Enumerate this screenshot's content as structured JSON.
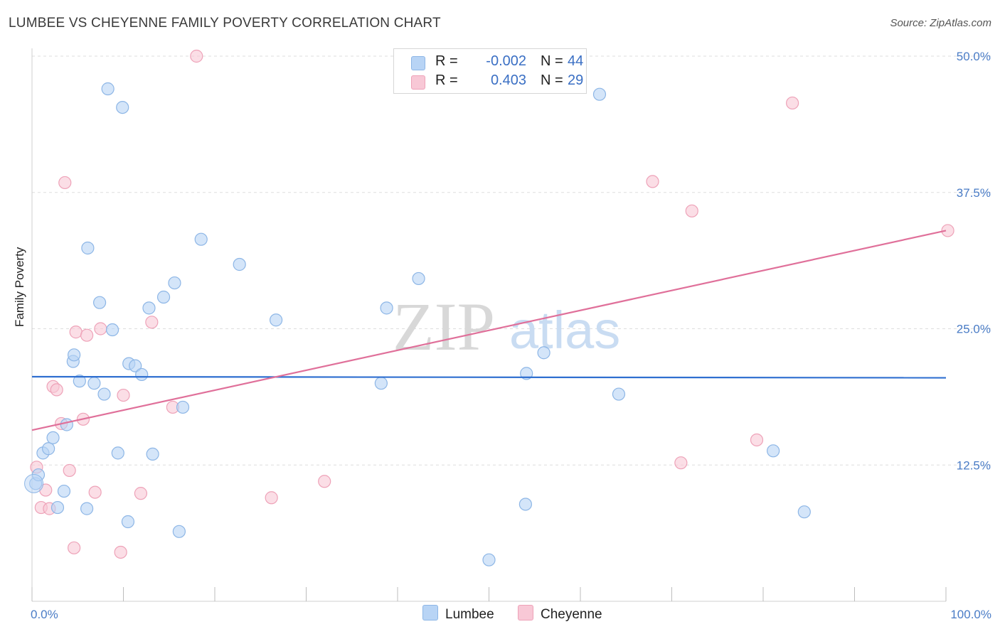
{
  "title": "LUMBEE VS CHEYENNE FAMILY POVERTY CORRELATION CHART",
  "source": "Source: ZipAtlas.com",
  "watermark": {
    "zip": "ZIP",
    "atlas": "atlas"
  },
  "legend": {
    "rows": [
      {
        "r_label": "R =",
        "r_value": "-0.002",
        "n_label": "N =",
        "n_value": "44"
      },
      {
        "r_label": "R =",
        "r_value": "0.403",
        "n_label": "N =",
        "n_value": "29"
      }
    ]
  },
  "colors": {
    "lumbee_fill": "#b8d4f5",
    "lumbee_stroke": "#8db6e6",
    "lumbee_line": "#2f6fd0",
    "cheyenne_fill": "#f8c8d6",
    "cheyenne_stroke": "#eea2b8",
    "cheyenne_line": "#e0709a",
    "grid": "#dddddd",
    "axis_text": "#4a7cc6"
  },
  "chart_data": {
    "type": "scatter",
    "title": "LUMBEE VS CHEYENNE FAMILY POVERTY CORRELATION CHART",
    "xlabel": "",
    "ylabel": "Family Poverty",
    "xlim": [
      0,
      100
    ],
    "ylim": [
      0,
      50
    ],
    "x_tick_labels": [
      "0.0%",
      "100.0%"
    ],
    "y_ticks": [
      12.5,
      25.0,
      37.5,
      50.0
    ],
    "y_tick_labels": [
      "12.5%",
      "25.0%",
      "37.5%",
      "50.0%"
    ],
    "grid": true,
    "series": [
      {
        "name": "Lumbee",
        "r": -0.002,
        "n": 44,
        "trend": {
          "x": [
            0,
            100
          ],
          "y": [
            20.6,
            20.5
          ]
        },
        "points": [
          [
            0.4,
            10.8
          ],
          [
            0.7,
            11.6
          ],
          [
            1.2,
            13.6
          ],
          [
            1.8,
            14.0
          ],
          [
            2.3,
            15.0
          ],
          [
            2.8,
            8.6
          ],
          [
            3.5,
            10.1
          ],
          [
            3.8,
            16.2
          ],
          [
            4.5,
            22.0
          ],
          [
            4.6,
            22.6
          ],
          [
            5.2,
            20.2
          ],
          [
            6.0,
            8.5
          ],
          [
            6.1,
            32.4
          ],
          [
            6.8,
            20.0
          ],
          [
            7.4,
            27.4
          ],
          [
            7.9,
            19.0
          ],
          [
            8.3,
            47.0
          ],
          [
            8.8,
            24.9
          ],
          [
            9.4,
            13.6
          ],
          [
            9.9,
            45.3
          ],
          [
            10.5,
            7.3
          ],
          [
            10.6,
            21.8
          ],
          [
            11.3,
            21.6
          ],
          [
            12.0,
            20.8
          ],
          [
            12.8,
            26.9
          ],
          [
            13.2,
            13.5
          ],
          [
            14.4,
            27.9
          ],
          [
            15.6,
            29.2
          ],
          [
            16.1,
            6.4
          ],
          [
            16.5,
            17.8
          ],
          [
            18.5,
            33.2
          ],
          [
            22.7,
            30.9
          ],
          [
            26.7,
            25.8
          ],
          [
            38.2,
            20.0
          ],
          [
            38.8,
            26.9
          ],
          [
            42.3,
            29.6
          ],
          [
            50.0,
            3.8
          ],
          [
            54.0,
            8.9
          ],
          [
            54.1,
            20.9
          ],
          [
            56.0,
            22.8
          ],
          [
            62.1,
            46.5
          ],
          [
            64.2,
            19.0
          ],
          [
            81.1,
            13.8
          ],
          [
            84.5,
            8.2
          ]
        ]
      },
      {
        "name": "Cheyenne",
        "r": 0.403,
        "n": 29,
        "trend": {
          "x": [
            0,
            100
          ],
          "y": [
            15.7,
            34.0
          ]
        },
        "points": [
          [
            0.5,
            12.3
          ],
          [
            1.0,
            8.6
          ],
          [
            1.5,
            10.2
          ],
          [
            1.9,
            8.5
          ],
          [
            2.3,
            19.7
          ],
          [
            2.7,
            19.4
          ],
          [
            3.2,
            16.3
          ],
          [
            3.6,
            38.4
          ],
          [
            4.1,
            12.0
          ],
          [
            4.6,
            4.9
          ],
          [
            4.8,
            24.7
          ],
          [
            5.6,
            16.7
          ],
          [
            6.0,
            24.4
          ],
          [
            6.9,
            10.0
          ],
          [
            7.5,
            25.0
          ],
          [
            9.7,
            4.5
          ],
          [
            10.0,
            18.9
          ],
          [
            11.9,
            9.9
          ],
          [
            13.1,
            25.6
          ],
          [
            15.4,
            17.8
          ],
          [
            18.0,
            50.0
          ],
          [
            26.2,
            9.5
          ],
          [
            32.0,
            11.0
          ],
          [
            67.9,
            38.5
          ],
          [
            71.0,
            12.7
          ],
          [
            72.2,
            35.8
          ],
          [
            79.3,
            14.8
          ],
          [
            83.2,
            45.7
          ],
          [
            100.2,
            34.0
          ]
        ]
      }
    ]
  },
  "bottom_legend": [
    {
      "name": "Lumbee"
    },
    {
      "name": "Cheyenne"
    }
  ]
}
